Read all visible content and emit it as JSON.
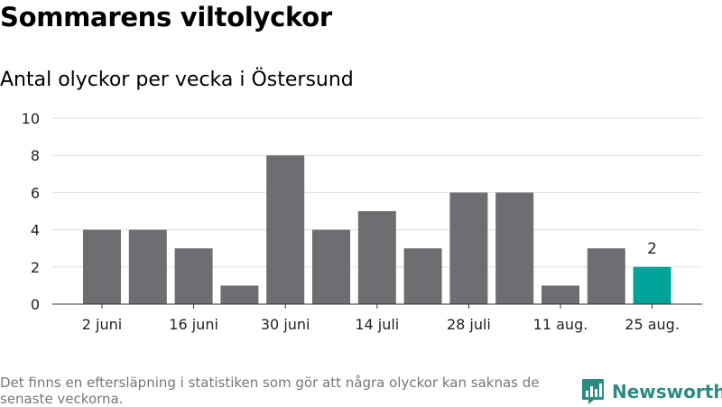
{
  "title": "Sommarens viltolyckor",
  "subtitle": "Antal olyckor per vecka i Östersund",
  "footnote": "Det finns en eftersläpning i statistiken som gör att några olyckor kan saknas de senaste veckorna.",
  "brand": {
    "name": "Newsworthy",
    "icon": "bar-chart-logo-icon"
  },
  "colors": {
    "bar": "#6e6d72",
    "highlight": "#00a39a",
    "grid": "#dddddd",
    "brand": "#2e8b83"
  },
  "chart_data": {
    "type": "bar",
    "values": [
      4,
      4,
      3,
      1,
      8,
      4,
      5,
      3,
      6,
      6,
      1,
      3,
      2
    ],
    "highlight_index": 12,
    "data_labels": [
      {
        "index": 12,
        "text": "2"
      }
    ],
    "x_tick_labels": [
      "2 juni",
      "16 juni",
      "30 juni",
      "14 juli",
      "28 juli",
      "11 aug.",
      "25 aug."
    ],
    "x_tick_every": 2,
    "y_ticks": [
      "0",
      "2",
      "4",
      "6",
      "8",
      "10"
    ],
    "ylim": [
      0,
      10
    ],
    "grid": true
  }
}
